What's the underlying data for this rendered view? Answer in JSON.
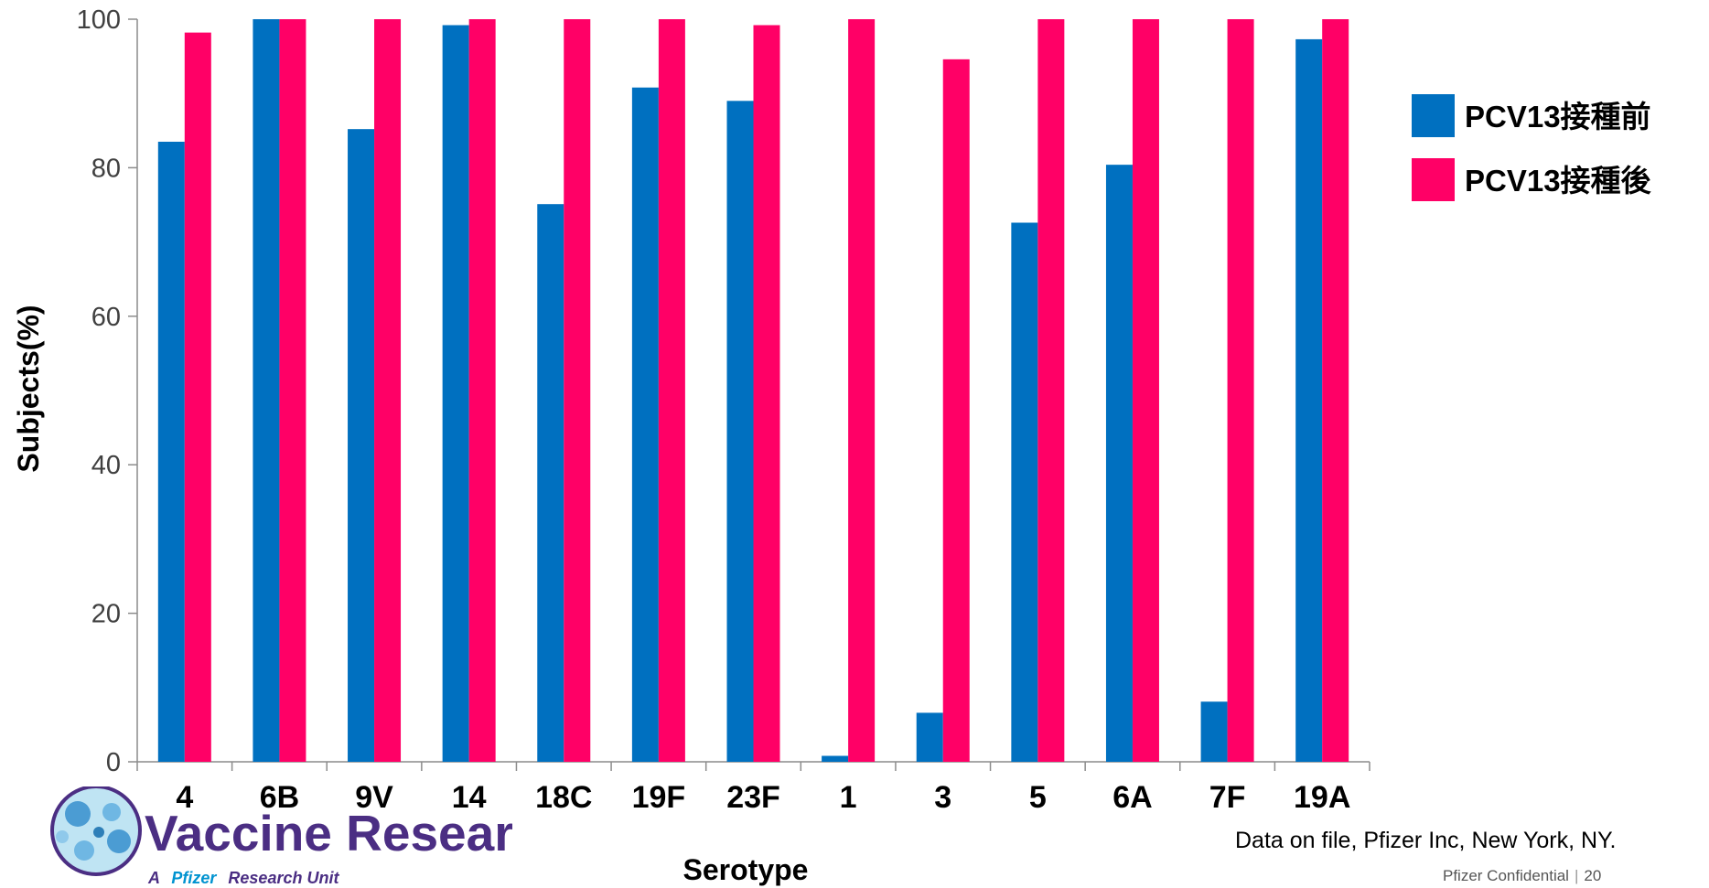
{
  "chart_data": {
    "type": "bar",
    "categories": [
      "4",
      "6B",
      "9V",
      "14",
      "18C",
      "19F",
      "23F",
      "1",
      "3",
      "5",
      "6A",
      "7F",
      "19A"
    ],
    "series": [
      {
        "name": "PCV13接種前",
        "color": "#0070C0",
        "values": [
          83.5,
          100,
          85.2,
          99.2,
          75.1,
          90.8,
          89.0,
          0.8,
          6.6,
          72.6,
          80.4,
          8.1,
          97.3
        ]
      },
      {
        "name": "PCV13接種後",
        "color": "#FF0066",
        "values": [
          98.2,
          100,
          100,
          100,
          100,
          100,
          99.2,
          100,
          94.6,
          100,
          100,
          100,
          100
        ]
      }
    ],
    "xlabel": "Serotype",
    "ylabel": "Subjects(%)",
    "ylim": [
      0,
      100
    ],
    "yticks": [
      0,
      20,
      40,
      60,
      80,
      100
    ],
    "grid": false,
    "legend_position": "right"
  },
  "footer": {
    "source": "Data on file, Pfizer Inc, New York, NY.",
    "confidential": "Pfizer Confidential",
    "page_number": "20"
  },
  "logo": {
    "name": "Vaccine Research",
    "tagline_prefix": "A",
    "brand": "Pfizer",
    "tagline_suffix": "Research Unit",
    "colors": {
      "primary": "#4B2E83",
      "accent": "#0093D0"
    }
  }
}
